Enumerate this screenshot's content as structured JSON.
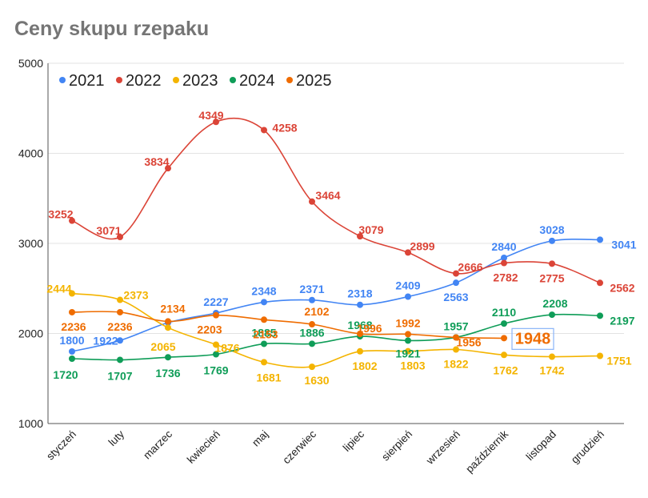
{
  "chart_data": {
    "type": "line",
    "title": "Ceny skupu rzepaku",
    "xlabel": "",
    "ylabel": "",
    "ylim": [
      1000,
      5000
    ],
    "yticks": [
      1000,
      2000,
      3000,
      4000,
      5000
    ],
    "grid": true,
    "legend_position": "top-left",
    "categories": [
      "styczeń",
      "luty",
      "marzec",
      "kwiecień",
      "maj",
      "czerwiec",
      "lipiec",
      "sierpień",
      "wrzesień",
      "październik",
      "listopad",
      "grudzień"
    ],
    "series": [
      {
        "name": "2021",
        "color": "#4285F4",
        "values": [
          1800,
          1922,
          2120,
          2227,
          2348,
          2371,
          2318,
          2409,
          2563,
          2840,
          3028,
          3041
        ],
        "labels": [
          "1800",
          "1922",
          "",
          "2227",
          "2348",
          "2371",
          "2318",
          "2409",
          "2563",
          "2840",
          "3028",
          "3041"
        ]
      },
      {
        "name": "2022",
        "color": "#DB4437",
        "values": [
          3252,
          3071,
          3834,
          4349,
          4258,
          3464,
          3079,
          2899,
          2666,
          2782,
          2775,
          2562
        ],
        "labels": [
          "3252",
          "3071",
          "3834",
          "4349",
          "4258",
          "3464",
          "3079",
          "2899",
          "2666",
          "2782",
          "2775",
          "2562"
        ]
      },
      {
        "name": "2023",
        "color": "#F4B400",
        "values": [
          2444,
          2373,
          2065,
          1876,
          1681,
          1630,
          1802,
          1803,
          1822,
          1762,
          1742,
          1751
        ],
        "labels": [
          "2444",
          "2373",
          "2065",
          "1876",
          "1681",
          "1630",
          "1802",
          "1803",
          "1822",
          "1762",
          "1742",
          "1751"
        ]
      },
      {
        "name": "2024",
        "color": "#0F9D58",
        "values": [
          1720,
          1707,
          1736,
          1769,
          1885,
          1886,
          1968,
          1921,
          1957,
          2110,
          2208,
          2197
        ],
        "labels": [
          "1720",
          "1707",
          "1736",
          "1769",
          "1885",
          "1886",
          "1968",
          "1921",
          "1957",
          "2110",
          "2208",
          "2197"
        ]
      },
      {
        "name": "2025",
        "color": "#EF6C00",
        "values": [
          2236,
          2236,
          2134,
          2203,
          2153,
          2102,
          1996,
          1992,
          1956,
          1948,
          null,
          null
        ],
        "labels": [
          "2236",
          "2236",
          "2134",
          "2203",
          "2153",
          "2102",
          "1996",
          "1992",
          "1956",
          "",
          "",
          ""
        ]
      }
    ],
    "highlight": {
      "text": "1948",
      "color": "#EF6C00",
      "border_color": "#8AB4F8"
    }
  }
}
